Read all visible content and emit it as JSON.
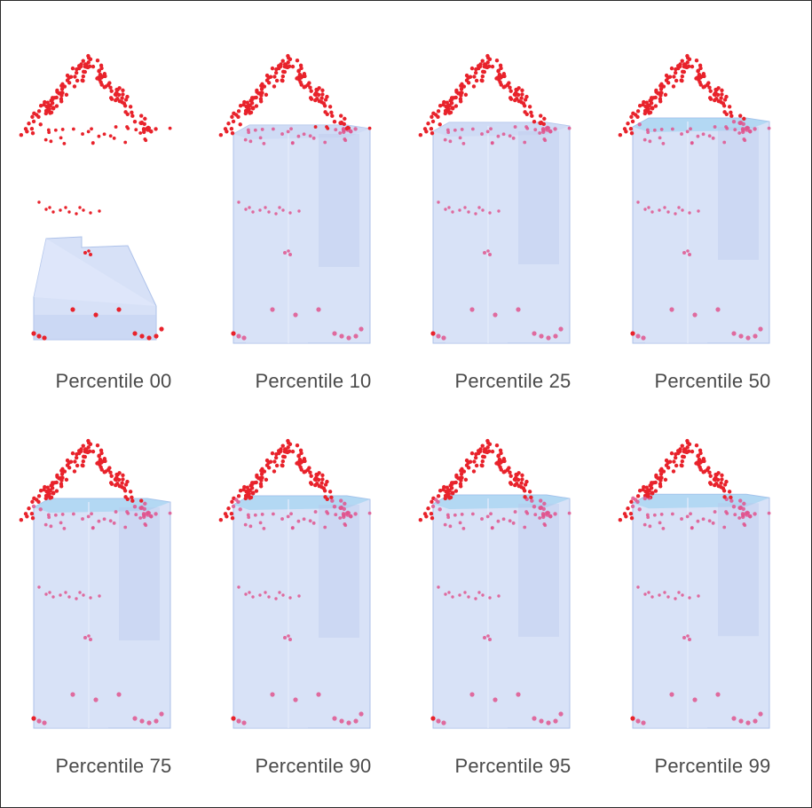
{
  "panels": [
    {
      "caption": "Percentile 00",
      "fill_level": 0.0
    },
    {
      "caption": "Percentile 10",
      "fill_level": 0.1
    },
    {
      "caption": "Percentile 25",
      "fill_level": 0.25
    },
    {
      "caption": "Percentile 50",
      "fill_level": 0.5
    },
    {
      "caption": "Percentile 75",
      "fill_level": 0.75
    },
    {
      "caption": "Percentile 90",
      "fill_level": 0.9
    },
    {
      "caption": "Percentile 95",
      "fill_level": 0.95
    },
    {
      "caption": "Percentile 99",
      "fill_level": 0.99
    }
  ],
  "colors": {
    "points": "#e8222b",
    "points_inside": "#e0558e",
    "volume": "#c9d7f4",
    "volume_edge": "#aec2ea",
    "volume_top": "#8ecdf0",
    "caption": "#4a4a4a",
    "border": "#2b2b2b"
  }
}
